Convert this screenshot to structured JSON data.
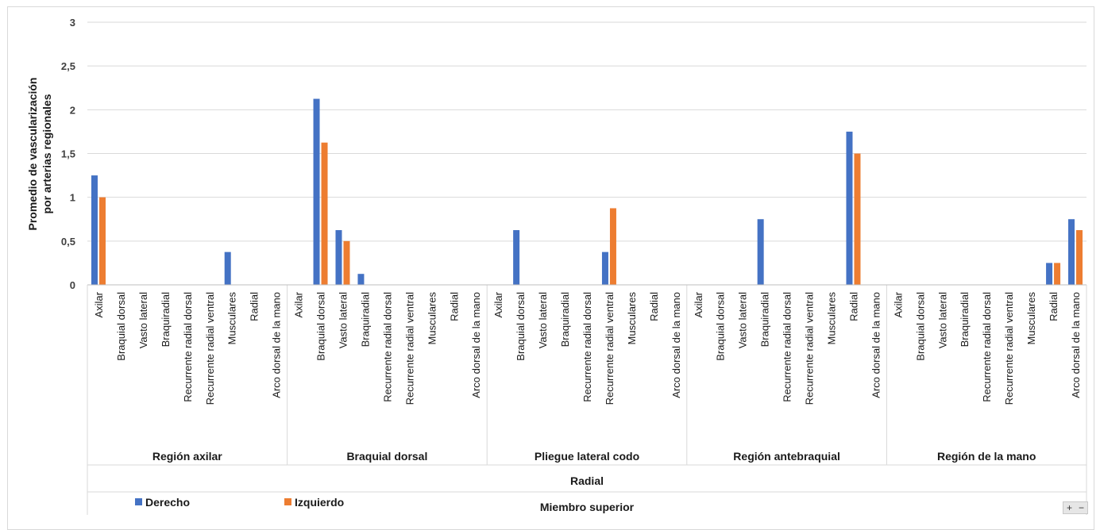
{
  "chart_data": {
    "type": "bar",
    "ylabel_lines": [
      "Promedio de vascularización",
      "por arterias regionales"
    ],
    "ylim": [
      0,
      3
    ],
    "yticks": [
      "0",
      "0,5",
      "1",
      "1,5",
      "2",
      "2,5",
      "3"
    ],
    "ytick_values": [
      0,
      0.5,
      1,
      1.5,
      2,
      2.5,
      3
    ],
    "grid": true,
    "legend_position": "bottom-left",
    "axis_level2": "Radial",
    "axis_level3": "Miembro superior",
    "groups": [
      {
        "name": "Región axilar",
        "categories": [
          "Axilar",
          "Braquial dorsal",
          "Vasto lateral",
          "Braquiradial",
          "Recurrente radial dorsal",
          "Recurrente radial ventral",
          "Musculares",
          "Radial",
          "Arco dorsal de la mano"
        ],
        "derecho": [
          1.25,
          0,
          0,
          0,
          0,
          0,
          0.375,
          0,
          0
        ],
        "izquierdo": [
          1.0,
          0,
          0,
          0,
          0,
          0,
          0,
          0,
          0
        ]
      },
      {
        "name": "Braquial dorsal",
        "categories": [
          "Axilar",
          "Braquial dorsal",
          "Vasto lateral",
          "Braquiradial",
          "Recurrente radial dorsal",
          "Recurrente radial ventral",
          "Musculares",
          "Radial",
          "Arco dorsal de la mano"
        ],
        "derecho": [
          0,
          2.125,
          0.625,
          0.125,
          0,
          0,
          0,
          0,
          0
        ],
        "izquierdo": [
          0,
          1.625,
          0.5,
          0,
          0,
          0,
          0,
          0,
          0
        ]
      },
      {
        "name": "Pliegue lateral codo",
        "categories": [
          "Axilar",
          "Braquial dorsal",
          "Vasto lateral",
          "Braquiradial",
          "Recurrente radial dorsal",
          "Recurrente radial ventral",
          "Musculares",
          "Radial",
          "Arco dorsal de la mano"
        ],
        "derecho": [
          0,
          0.625,
          0,
          0,
          0,
          0.375,
          0,
          0,
          0
        ],
        "izquierdo": [
          0,
          0,
          0,
          0,
          0,
          0.875,
          0,
          0,
          0
        ]
      },
      {
        "name": "Región antebraquial",
        "categories": [
          "Axilar",
          "Braquial dorsal",
          "Vasto lateral",
          "Braquiradial",
          "Recurrente radial dorsal",
          "Recurrente radial ventral",
          "Musculares",
          "Radial",
          "Arco dorsal de la mano"
        ],
        "derecho": [
          0,
          0,
          0,
          0.75,
          0,
          0,
          0,
          1.75,
          0
        ],
        "izquierdo": [
          0,
          0,
          0,
          0,
          0,
          0,
          0,
          1.5,
          0
        ]
      },
      {
        "name": "Región de la mano",
        "categories": [
          "Axilar",
          "Braquial dorsal",
          "Vasto lateral",
          "Braquiradial",
          "Recurrente radial dorsal",
          "Recurrente radial ventral",
          "Musculares",
          "Radial",
          "Arco dorsal de la mano"
        ],
        "derecho": [
          0,
          0,
          0,
          0,
          0,
          0,
          0,
          0.25,
          0.75
        ],
        "izquierdo": [
          0,
          0,
          0,
          0,
          0,
          0,
          0,
          0.25,
          0.625
        ]
      }
    ],
    "series": [
      {
        "name": "Derecho",
        "color": "#4472c4"
      },
      {
        "name": "Izquierdo",
        "color": "#ed7d31"
      }
    ]
  },
  "zoom_controls": {
    "plus": "+",
    "minus": "−"
  }
}
